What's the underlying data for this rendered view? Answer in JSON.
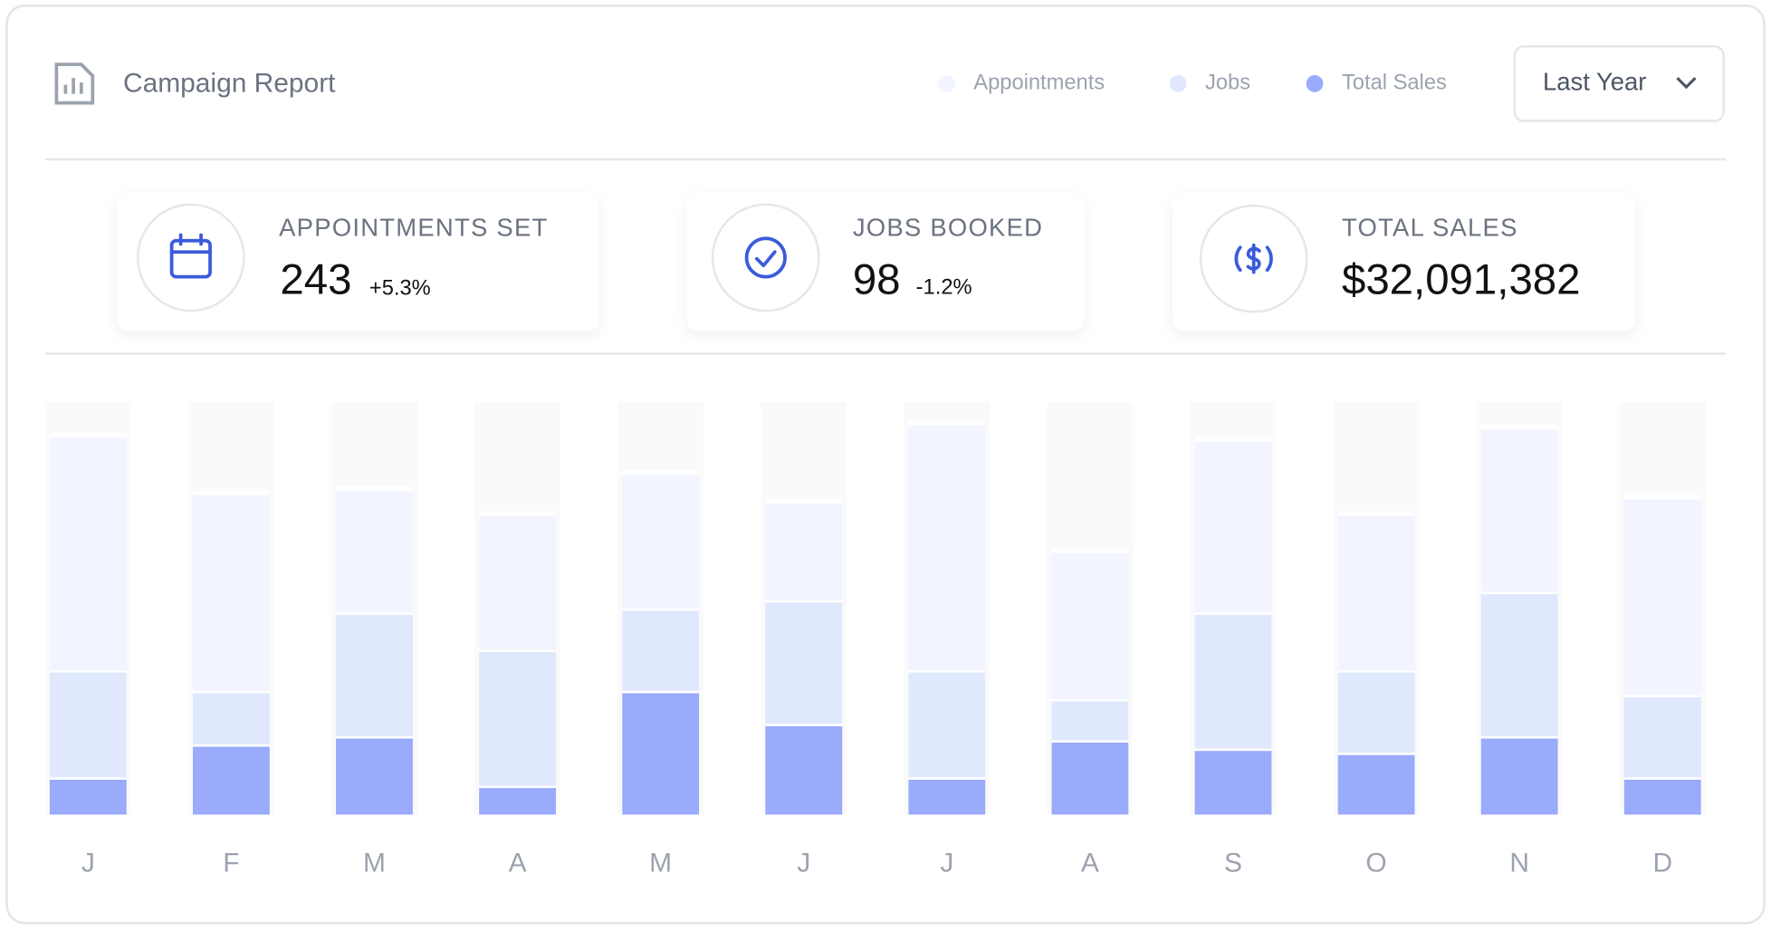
{
  "header": {
    "title": "Campaign Report",
    "period": "Last Year"
  },
  "stats": [
    {
      "label": "APPOINTMENTS SET",
      "value": "243",
      "change": "+5.3%"
    },
    {
      "label": "JOBS BOOKED",
      "value": "98",
      "change": "-1.2%"
    },
    {
      "label": "TOTAL SALES",
      "value": "$32,091,382"
    }
  ],
  "chart_data": {
    "type": "stacked-bar",
    "categories": [
      "J",
      "F",
      "M",
      "A",
      "M",
      "J",
      "J",
      "A",
      "S",
      "O",
      "N",
      "D"
    ],
    "ylim": [
      0,
      100
    ],
    "series": [
      {
        "name": "Appointments",
        "color": "#f2f5ff",
        "values": [
          57,
          48,
          30,
          33,
          33,
          24,
          60,
          36,
          42,
          38,
          40,
          48
        ]
      },
      {
        "name": "Jobs",
        "color": "#dfe8fd",
        "values": [
          26,
          13,
          30,
          33,
          20,
          30,
          26,
          10,
          33,
          20,
          35,
          20
        ]
      },
      {
        "name": "Total Sales",
        "color": "#9aabfb",
        "values": [
          9,
          17,
          19,
          7,
          30,
          22,
          9,
          18,
          16,
          15,
          19,
          9
        ]
      }
    ]
  }
}
